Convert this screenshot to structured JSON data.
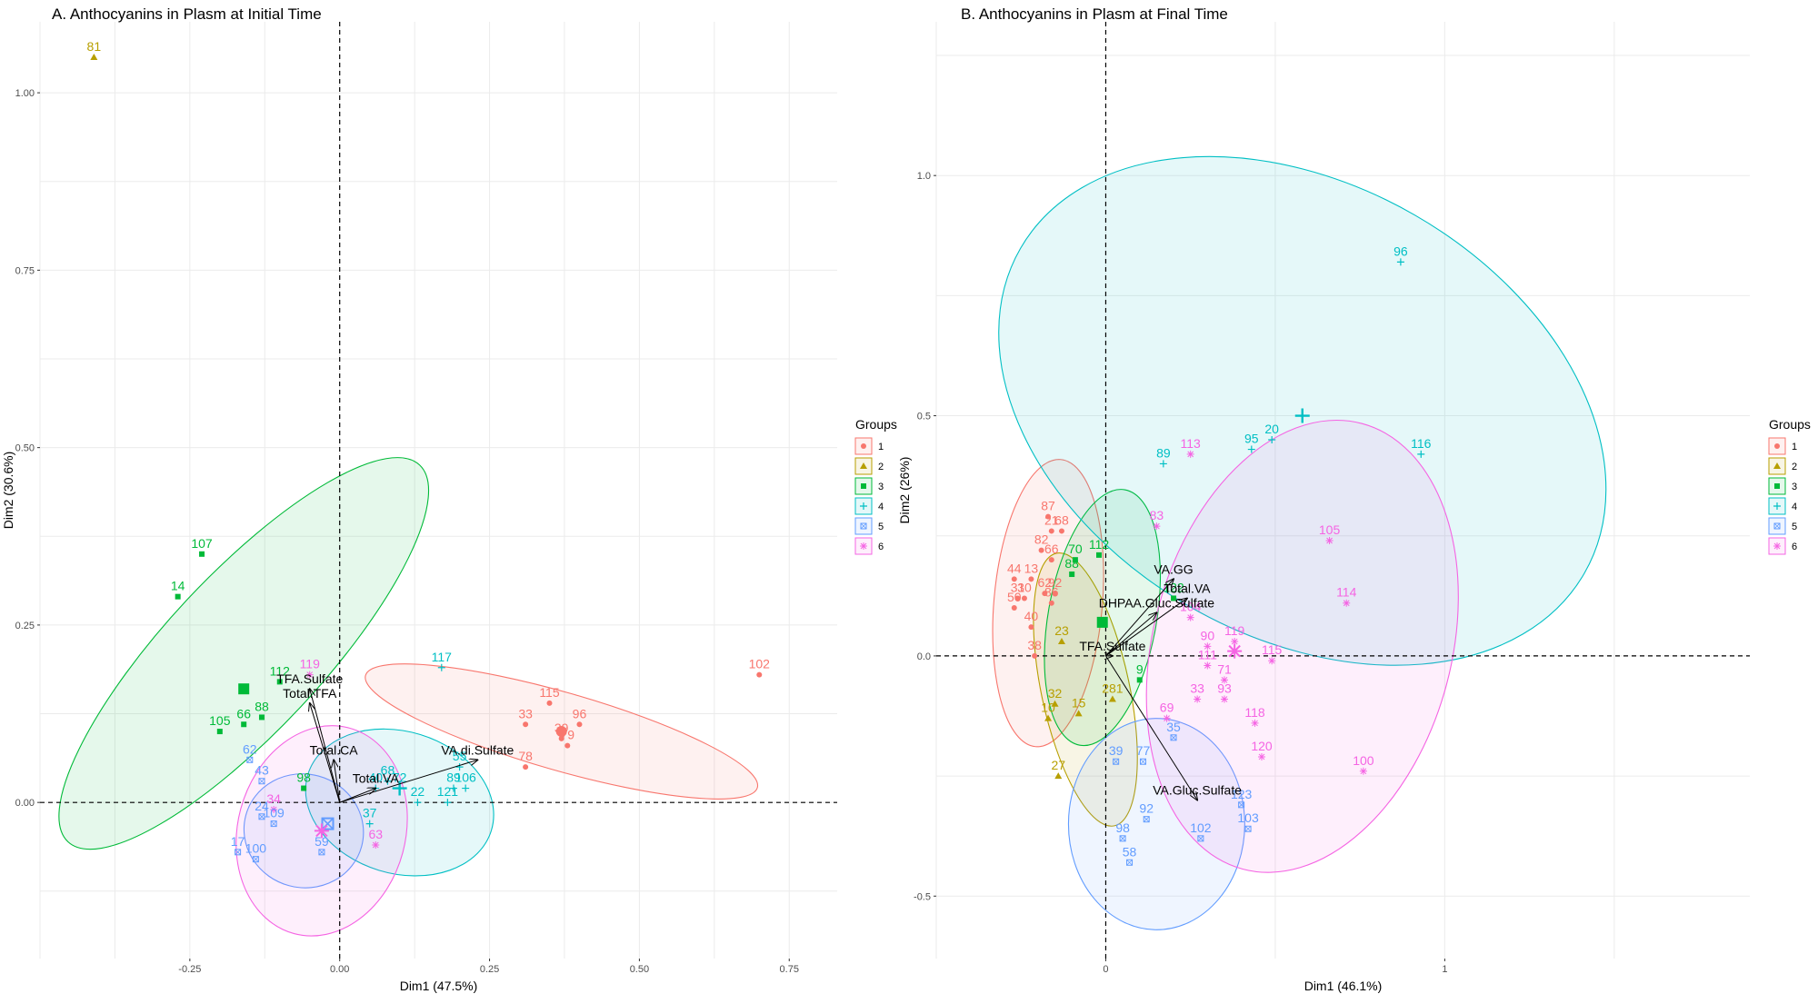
{
  "chart_data": [
    {
      "type": "scatter",
      "title": "A. Anthocyanins in Plasm at Initial Time",
      "xlabel": "Dim1 (47.5%)",
      "ylabel": "Dim2 (30.6%)",
      "xlim": [
        -0.5,
        0.83
      ],
      "ylim": [
        -0.22,
        1.1
      ],
      "xticks": [
        "-0.25",
        "0.00",
        "0.25",
        "0.50",
        "0.75"
      ],
      "yticks": [
        "0.00",
        "0.25",
        "0.50",
        "0.75",
        "1.00"
      ],
      "grid": true,
      "legend": {
        "title": "Groups",
        "position": "right",
        "entries": [
          "1",
          "2",
          "3",
          "4",
          "5",
          "6"
        ]
      },
      "colors": {
        "1": "#F8766D",
        "2": "#B79F00",
        "3": "#00BA38",
        "4": "#00BFC4",
        "5": "#619CFF",
        "6": "#F564E3"
      },
      "ellipses": [
        {
          "group": "1",
          "cx": 0.37,
          "cy": 0.1,
          "rx": 0.34,
          "ry": 0.055,
          "angle": -16
        },
        {
          "group": "3",
          "cx": -0.16,
          "cy": 0.21,
          "rx": 0.43,
          "ry": 0.11,
          "angle": 47
        },
        {
          "group": "4",
          "cx": 0.1,
          "cy": 0.0,
          "rx": 0.16,
          "ry": 0.1,
          "angle": -17
        },
        {
          "group": "5",
          "cx": -0.06,
          "cy": -0.04,
          "rx": 0.1,
          "ry": 0.08,
          "angle": -15
        },
        {
          "group": "6",
          "cx": -0.03,
          "cy": -0.04,
          "rx": 0.14,
          "ry": 0.15,
          "angle": -15
        }
      ],
      "centroids": [
        {
          "group": "1",
          "x": 0.37,
          "y": 0.1
        },
        {
          "group": "3",
          "x": -0.16,
          "y": 0.16
        },
        {
          "group": "4",
          "x": 0.1,
          "y": 0.02
        },
        {
          "group": "5",
          "x": -0.02,
          "y": -0.03
        },
        {
          "group": "6",
          "x": -0.03,
          "y": -0.04
        }
      ],
      "points": [
        {
          "label": "81",
          "group": "2",
          "x": -0.41,
          "y": 1.05
        },
        {
          "label": "107",
          "group": "3",
          "x": -0.23,
          "y": 0.35
        },
        {
          "label": "14",
          "group": "3",
          "x": -0.27,
          "y": 0.29
        },
        {
          "label": "112",
          "group": "3",
          "x": -0.1,
          "y": 0.17
        },
        {
          "label": "88",
          "group": "3",
          "x": -0.13,
          "y": 0.12
        },
        {
          "label": "66",
          "group": "3",
          "x": -0.16,
          "y": 0.11
        },
        {
          "label": "105",
          "group": "3",
          "x": -0.2,
          "y": 0.1
        },
        {
          "label": "98",
          "group": "3",
          "x": -0.06,
          "y": 0.02
        },
        {
          "label": "119",
          "group": "6",
          "x": -0.05,
          "y": 0.18
        },
        {
          "label": "34",
          "group": "6",
          "x": -0.11,
          "y": -0.01
        },
        {
          "label": "63",
          "group": "6",
          "x": 0.06,
          "y": -0.06
        },
        {
          "label": "117",
          "group": "4",
          "x": 0.17,
          "y": 0.19
        },
        {
          "label": "55",
          "group": "4",
          "x": 0.2,
          "y": 0.05
        },
        {
          "label": "68",
          "group": "4",
          "x": 0.08,
          "y": 0.03
        },
        {
          "label": "40",
          "group": "4",
          "x": 0.06,
          "y": 0.02
        },
        {
          "label": "72",
          "group": "4",
          "x": 0.1,
          "y": 0.02
        },
        {
          "label": "89",
          "group": "4",
          "x": 0.19,
          "y": 0.02
        },
        {
          "label": "106",
          "group": "4",
          "x": 0.21,
          "y": 0.02
        },
        {
          "label": "121",
          "group": "4",
          "x": 0.18,
          "y": -0.0
        },
        {
          "label": "22",
          "group": "4",
          "x": 0.13,
          "y": -0.0
        },
        {
          "label": "37",
          "group": "4",
          "x": 0.05,
          "y": -0.03
        },
        {
          "label": "115",
          "group": "1",
          "x": 0.35,
          "y": 0.14
        },
        {
          "label": "102",
          "group": "1",
          "x": 0.7,
          "y": 0.18
        },
        {
          "label": "33",
          "group": "1",
          "x": 0.31,
          "y": 0.11
        },
        {
          "label": "96",
          "group": "1",
          "x": 0.4,
          "y": 0.11
        },
        {
          "label": "39",
          "group": "1",
          "x": 0.37,
          "y": 0.09
        },
        {
          "label": "79",
          "group": "1",
          "x": 0.38,
          "y": 0.08
        },
        {
          "label": "78",
          "group": "1",
          "x": 0.31,
          "y": 0.05
        },
        {
          "label": "62",
          "group": "5",
          "x": -0.15,
          "y": 0.06
        },
        {
          "label": "43",
          "group": "5",
          "x": -0.13,
          "y": 0.03
        },
        {
          "label": "24",
          "group": "5",
          "x": -0.13,
          "y": -0.02
        },
        {
          "label": "109",
          "group": "5",
          "x": -0.11,
          "y": -0.03
        },
        {
          "label": "17",
          "group": "5",
          "x": -0.17,
          "y": -0.07
        },
        {
          "label": "59",
          "group": "5",
          "x": -0.03,
          "y": -0.07
        },
        {
          "label": "100",
          "group": "5",
          "x": -0.14,
          "y": -0.08
        }
      ],
      "variables": [
        {
          "label": "TFA.Sulfate",
          "x": -0.05,
          "y": 0.16
        },
        {
          "label": "Total.TFA",
          "x": -0.05,
          "y": 0.14
        },
        {
          "label": "Total.CA",
          "x": -0.01,
          "y": 0.06
        },
        {
          "label": "Total.VA",
          "x": 0.06,
          "y": 0.02
        },
        {
          "label": "VA.di.Sulfate",
          "x": 0.23,
          "y": 0.06
        }
      ]
    },
    {
      "type": "scatter",
      "title": "B. Anthocyanins in Plasm at Final Time",
      "xlabel": "Dim1 (46.1%)",
      "ylabel": "Dim2 (26%)",
      "xlim": [
        -0.5,
        1.9
      ],
      "ylim": [
        -0.63,
        1.32
      ],
      "xticks": [
        "0",
        "1"
      ],
      "yticks": [
        "-0.5",
        "0.0",
        "0.5",
        "1.0"
      ],
      "grid": true,
      "legend": {
        "title": "Groups",
        "position": "right",
        "entries": [
          "1",
          "2",
          "3",
          "4",
          "5",
          "6"
        ]
      },
      "colors": {
        "1": "#F8766D",
        "2": "#B79F00",
        "3": "#00BA38",
        "4": "#00BFC4",
        "5": "#619CFF",
        "6": "#F564E3"
      },
      "ellipses": [
        {
          "group": "1",
          "cx": -0.17,
          "cy": 0.11,
          "rx": 0.16,
          "ry": 0.3,
          "angle": -5
        },
        {
          "group": "2",
          "cx": -0.06,
          "cy": -0.07,
          "rx": 0.13,
          "ry": 0.29,
          "angle": 12
        },
        {
          "group": "3",
          "cx": -0.01,
          "cy": 0.08,
          "rx": 0.16,
          "ry": 0.27,
          "angle": -10
        },
        {
          "group": "4",
          "cx": 0.58,
          "cy": 0.51,
          "rx": 0.96,
          "ry": 0.47,
          "angle": -30
        },
        {
          "group": "5",
          "cx": 0.15,
          "cy": -0.35,
          "rx": 0.26,
          "ry": 0.22,
          "angle": 0
        },
        {
          "group": "6",
          "cx": 0.58,
          "cy": 0.02,
          "rx": 0.44,
          "ry": 0.48,
          "angle": -15
        }
      ],
      "centroids": [
        {
          "group": "3",
          "x": -0.01,
          "y": 0.07
        },
        {
          "group": "4",
          "x": 0.58,
          "y": 0.5
        },
        {
          "group": "6",
          "x": 0.38,
          "y": 0.01
        }
      ],
      "points": [
        {
          "label": "96",
          "group": "4",
          "x": 0.87,
          "y": 0.82
        },
        {
          "label": "20",
          "group": "4",
          "x": 0.49,
          "y": 0.45
        },
        {
          "label": "95",
          "group": "4",
          "x": 0.43,
          "y": 0.43
        },
        {
          "label": "116",
          "group": "4",
          "x": 0.93,
          "y": 0.42
        },
        {
          "label": "89",
          "group": "4",
          "x": 0.17,
          "y": 0.4
        },
        {
          "label": "113",
          "group": "6",
          "x": 0.25,
          "y": 0.42
        },
        {
          "label": "83",
          "group": "6",
          "x": 0.15,
          "y": 0.27
        },
        {
          "label": "105",
          "group": "6",
          "x": 0.66,
          "y": 0.24
        },
        {
          "label": "114",
          "group": "6",
          "x": 0.71,
          "y": 0.11
        },
        {
          "label": "104",
          "group": "6",
          "x": 0.25,
          "y": 0.08
        },
        {
          "label": "119",
          "group": "6",
          "x": 0.38,
          "y": 0.03
        },
        {
          "label": "115",
          "group": "6",
          "x": 0.49,
          "y": -0.01
        },
        {
          "label": "90",
          "group": "6",
          "x": 0.3,
          "y": 0.02
        },
        {
          "label": "111",
          "group": "6",
          "x": 0.3,
          "y": -0.02
        },
        {
          "label": "71",
          "group": "6",
          "x": 0.35,
          "y": -0.05
        },
        {
          "label": "33",
          "group": "6",
          "x": 0.27,
          "y": -0.09
        },
        {
          "label": "93",
          "group": "6",
          "x": 0.35,
          "y": -0.09
        },
        {
          "label": "69",
          "group": "6",
          "x": 0.18,
          "y": -0.13
        },
        {
          "label": "118",
          "group": "6",
          "x": 0.44,
          "y": -0.14
        },
        {
          "label": "120",
          "group": "6",
          "x": 0.46,
          "y": -0.21
        },
        {
          "label": "100",
          "group": "6",
          "x": 0.76,
          "y": -0.24
        },
        {
          "label": "87",
          "group": "1",
          "x": -0.17,
          "y": 0.29
        },
        {
          "label": "21",
          "group": "1",
          "x": -0.16,
          "y": 0.26
        },
        {
          "label": "68",
          "group": "1",
          "x": -0.13,
          "y": 0.26
        },
        {
          "label": "82",
          "group": "1",
          "x": -0.19,
          "y": 0.22
        },
        {
          "label": "66",
          "group": "1",
          "x": -0.16,
          "y": 0.2
        },
        {
          "label": "44",
          "group": "1",
          "x": -0.27,
          "y": 0.16
        },
        {
          "label": "13",
          "group": "1",
          "x": -0.22,
          "y": 0.16
        },
        {
          "label": "62",
          "group": "1",
          "x": -0.18,
          "y": 0.13
        },
        {
          "label": "92",
          "group": "1",
          "x": -0.15,
          "y": 0.13
        },
        {
          "label": "86",
          "group": "1",
          "x": -0.16,
          "y": 0.11
        },
        {
          "label": "31",
          "group": "1",
          "x": -0.26,
          "y": 0.12
        },
        {
          "label": "30",
          "group": "1",
          "x": -0.24,
          "y": 0.12
        },
        {
          "label": "50",
          "group": "1",
          "x": -0.27,
          "y": 0.1
        },
        {
          "label": "40",
          "group": "1",
          "x": -0.22,
          "y": 0.06
        },
        {
          "label": "38",
          "group": "1",
          "x": -0.21,
          "y": 0.0
        },
        {
          "label": "112",
          "group": "3",
          "x": -0.02,
          "y": 0.21
        },
        {
          "label": "70",
          "group": "3",
          "x": -0.09,
          "y": 0.2
        },
        {
          "label": "88",
          "group": "3",
          "x": -0.1,
          "y": 0.17
        },
        {
          "label": "9",
          "group": "3",
          "x": 0.1,
          "y": -0.05
        },
        {
          "label": "122",
          "group": "3",
          "x": 0.2,
          "y": 0.12
        },
        {
          "label": "23",
          "group": "2",
          "x": -0.13,
          "y": 0.03
        },
        {
          "label": "32",
          "group": "2",
          "x": -0.15,
          "y": -0.1
        },
        {
          "label": "10",
          "group": "2",
          "x": -0.17,
          "y": -0.13
        },
        {
          "label": "15",
          "group": "2",
          "x": -0.08,
          "y": -0.12
        },
        {
          "label": "281",
          "group": "2",
          "x": 0.02,
          "y": -0.09
        },
        {
          "label": "27",
          "group": "2",
          "x": -0.14,
          "y": -0.25
        },
        {
          "label": "39",
          "group": "5",
          "x": 0.03,
          "y": -0.22
        },
        {
          "label": "77",
          "group": "5",
          "x": 0.11,
          "y": -0.22
        },
        {
          "label": "35",
          "group": "5",
          "x": 0.2,
          "y": -0.17
        },
        {
          "label": "123",
          "group": "5",
          "x": 0.4,
          "y": -0.31
        },
        {
          "label": "92",
          "group": "5",
          "x": 0.12,
          "y": -0.34
        },
        {
          "label": "102",
          "group": "5",
          "x": 0.28,
          "y": -0.38
        },
        {
          "label": "103",
          "group": "5",
          "x": 0.42,
          "y": -0.36
        },
        {
          "label": "98",
          "group": "5",
          "x": 0.05,
          "y": -0.38
        },
        {
          "label": "58",
          "group": "5",
          "x": 0.07,
          "y": -0.43
        }
      ],
      "variables": [
        {
          "label": "VA.GG",
          "x": 0.2,
          "y": 0.16
        },
        {
          "label": "Total.VA",
          "x": 0.24,
          "y": 0.12
        },
        {
          "label": "DHPAA.Gluc.Sulfate",
          "x": 0.15,
          "y": 0.09
        },
        {
          "label": "TFA.Sulfate",
          "x": 0.02,
          "y": 0.0
        },
        {
          "label": "VA.Gluc.Sulfate",
          "x": 0.27,
          "y": -0.3
        }
      ]
    }
  ]
}
